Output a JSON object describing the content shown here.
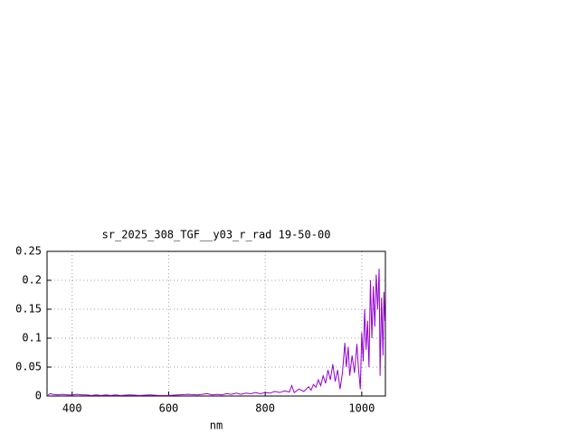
{
  "chart_data": {
    "type": "line",
    "title": "sr_2025_308_TGF__y03_r_rad 19-50-00",
    "x_label": "nm",
    "x": [
      350,
      355,
      360,
      370,
      380,
      390,
      400,
      410,
      420,
      430,
      440,
      450,
      460,
      470,
      480,
      490,
      500,
      520,
      540,
      560,
      580,
      600,
      620,
      640,
      660,
      680,
      690,
      700,
      710,
      720,
      730,
      740,
      750,
      760,
      770,
      780,
      790,
      800,
      810,
      820,
      830,
      840,
      850,
      855,
      860,
      870,
      880,
      890,
      895,
      900,
      905,
      910,
      915,
      920,
      925,
      930,
      935,
      940,
      945,
      950,
      955,
      960,
      965,
      968,
      972,
      975,
      980,
      985,
      990,
      993,
      997,
      1000,
      1003,
      1006,
      1009,
      1012,
      1015,
      1018,
      1021,
      1024,
      1027,
      1030,
      1033,
      1036,
      1038,
      1041,
      1044,
      1046,
      1048
    ],
    "series": [
      {
        "color": "#9400d3",
        "values": [
          0.002,
          0.004,
          0.003,
          0.002,
          0.003,
          0.002,
          0.002,
          0.003,
          0.002,
          0.002,
          0.001,
          0.002,
          0.001,
          0.002,
          0.001,
          0.002,
          0.001,
          0.002,
          0.001,
          0.002,
          0.001,
          0.001,
          0.002,
          0.003,
          0.002,
          0.004,
          0.002,
          0.003,
          0.002,
          0.004,
          0.003,
          0.005,
          0.003,
          0.005,
          0.004,
          0.006,
          0.004,
          0.006,
          0.005,
          0.008,
          0.006,
          0.009,
          0.007,
          0.018,
          0.006,
          0.012,
          0.008,
          0.016,
          0.01,
          0.02,
          0.015,
          0.028,
          0.018,
          0.035,
          0.022,
          0.045,
          0.028,
          0.055,
          0.025,
          0.045,
          0.012,
          0.04,
          0.092,
          0.05,
          0.085,
          0.035,
          0.07,
          0.04,
          0.09,
          0.05,
          0.012,
          0.11,
          0.06,
          0.15,
          0.08,
          0.13,
          0.05,
          0.2,
          0.1,
          0.19,
          0.12,
          0.21,
          0.15,
          0.22,
          0.035,
          0.17,
          0.07,
          0.18,
          0.13
        ]
      }
    ],
    "xlim": [
      348,
      1049
    ],
    "ylim": [
      0,
      0.25
    ],
    "xticks": [
      400,
      600,
      800,
      1000
    ],
    "yticks": [
      0,
      0.05,
      0.1,
      0.15,
      0.2,
      0.25
    ],
    "grid": true
  }
}
